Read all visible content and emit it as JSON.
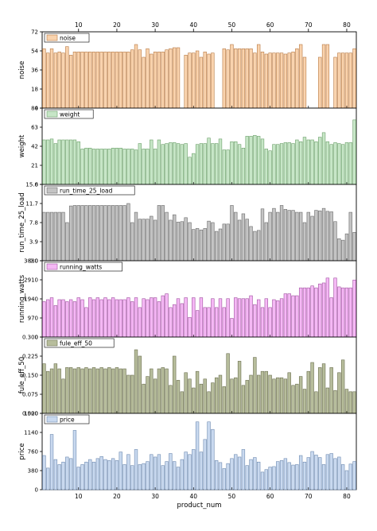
{
  "chart_data": [
    {
      "type": "bar",
      "series_name": "noise",
      "ylabel": "noise",
      "ylim": [
        0,
        72
      ],
      "yticks": [
        "0",
        "18",
        "36",
        "54",
        "72"
      ],
      "color": "#f9d3ae",
      "stroke": "#b77a45",
      "values": [
        56,
        52,
        56,
        52,
        53,
        52,
        58,
        50,
        53,
        53,
        53,
        53,
        53,
        53,
        53,
        53,
        53,
        53,
        53,
        53,
        53,
        53,
        53,
        55,
        60,
        55,
        48,
        56,
        51,
        53,
        53,
        53,
        55,
        56,
        57,
        57,
        0,
        50,
        52,
        52,
        54,
        48,
        53,
        51,
        52,
        0,
        0,
        56,
        55,
        60,
        56,
        56,
        56,
        56,
        56,
        52,
        60,
        53,
        51,
        52,
        52,
        52,
        52,
        51,
        52,
        53,
        56,
        60,
        48,
        0,
        0,
        0,
        48,
        60,
        60,
        0,
        48,
        52,
        52,
        52,
        52,
        56
      ]
    },
    {
      "type": "bar",
      "series_name": "weight",
      "ylabel": "weight",
      "ylim": [
        0,
        84
      ],
      "yticks": [
        "0",
        "21",
        "42",
        "63",
        "84"
      ],
      "color": "#c7e6c7",
      "stroke": "#6a9f68",
      "values": [
        49,
        49,
        50,
        45,
        49,
        49,
        49,
        49,
        49,
        47,
        39,
        40,
        40,
        39,
        39,
        39,
        39,
        39,
        40,
        40,
        40,
        39,
        39,
        39,
        38,
        45,
        39,
        39,
        49,
        39,
        49,
        44,
        45,
        46,
        46,
        45,
        44,
        45,
        30,
        34,
        44,
        45,
        45,
        51,
        45,
        45,
        50,
        38,
        38,
        47,
        47,
        44,
        40,
        53,
        53,
        54,
        53,
        50,
        39,
        37,
        44,
        44,
        45,
        46,
        46,
        45,
        49,
        47,
        52,
        49,
        49,
        47,
        52,
        57,
        47,
        44,
        46,
        45,
        44,
        46,
        46,
        71
      ]
    },
    {
      "type": "bar",
      "series_name": "run_time_25_load",
      "ylabel": "run_time_25_load",
      "ylim": [
        0,
        15.6
      ],
      "yticks": [
        "0.0",
        "3.9",
        "7.8",
        "11.7",
        "15.6"
      ],
      "color": "#c4c4c4",
      "stroke": "#6a6a6a",
      "values": [
        9.9,
        9.9,
        9.9,
        9.9,
        9.9,
        9.9,
        7.8,
        11.2,
        11.3,
        11.3,
        11.3,
        11.3,
        11.3,
        11.3,
        11.3,
        11.3,
        11.3,
        11.3,
        11.3,
        11.3,
        11.3,
        11.3,
        11.7,
        7.8,
        9.9,
        8.5,
        8.5,
        8.5,
        9.1,
        8.3,
        11.3,
        11.3,
        9.9,
        8.3,
        9.4,
        7.9,
        8.0,
        8.8,
        7.8,
        6.4,
        6.6,
        6.3,
        6.6,
        8.1,
        7.8,
        6.0,
        6.5,
        7.5,
        7.5,
        11.3,
        9.9,
        8.3,
        9.6,
        8.5,
        7.0,
        6.0,
        6.2,
        10.6,
        7.8,
        9.9,
        10.7,
        9.9,
        11.3,
        10.5,
        10.3,
        10.3,
        9.9,
        9.9,
        7.8,
        9.9,
        9.1,
        10.3,
        10.2,
        10.7,
        10.1,
        10.0,
        8.0,
        4.5,
        4.2,
        5.5,
        9.9,
        5.8
      ]
    },
    {
      "type": "bar",
      "series_name": "running_watts",
      "ylabel": "running_watts",
      "ylim": [
        0,
        3880
      ],
      "yticks": [
        "0",
        "970",
        "1940",
        "2910",
        "3880"
      ],
      "color": "#f5b8f5",
      "stroke": "#a050a0",
      "values": [
        1800,
        1900,
        2000,
        1600,
        1900,
        1900,
        1800,
        1900,
        1800,
        2000,
        1900,
        1500,
        2000,
        1900,
        2000,
        1900,
        2000,
        1900,
        2000,
        1900,
        1900,
        1900,
        2000,
        1800,
        2000,
        1500,
        1950,
        1900,
        2000,
        2000,
        1800,
        2100,
        2200,
        1500,
        1650,
        1950,
        1700,
        2000,
        1000,
        2000,
        1350,
        2000,
        1500,
        1500,
        1950,
        1500,
        1950,
        1500,
        1950,
        950,
        2000,
        1950,
        1950,
        1950,
        2100,
        1650,
        1900,
        1500,
        1950,
        1500,
        1900,
        1850,
        1950,
        2200,
        2200,
        2100,
        2100,
        2500,
        2500,
        2500,
        2600,
        2500,
        2700,
        2750,
        3000,
        2000,
        3000,
        2550,
        2500,
        2500,
        2500,
        2900
      ]
    },
    {
      "type": "bar",
      "series_name": "fule_eff_50",
      "ylabel": "fule_eff_50",
      "ylim": [
        0.0,
        0.3
      ],
      "yticks": [
        "0.000",
        "0.075",
        "0.150",
        "0.225",
        "0.300"
      ],
      "color": "#b7bd9c",
      "stroke": "#6a6e4e",
      "values": [
        0.195,
        0.165,
        0.175,
        0.195,
        0.175,
        0.135,
        0.18,
        0.18,
        0.175,
        0.18,
        0.175,
        0.18,
        0.175,
        0.18,
        0.175,
        0.18,
        0.175,
        0.18,
        0.175,
        0.18,
        0.175,
        0.175,
        0.15,
        0.15,
        0.25,
        0.225,
        0.115,
        0.145,
        0.175,
        0.135,
        0.175,
        0.18,
        0.175,
        0.11,
        0.225,
        0.13,
        0.085,
        0.16,
        0.135,
        0.1,
        0.165,
        0.115,
        0.135,
        0.085,
        0.12,
        0.14,
        0.15,
        0.105,
        0.235,
        0.135,
        0.14,
        0.205,
        0.11,
        0.13,
        0.15,
        0.22,
        0.15,
        0.165,
        0.165,
        0.15,
        0.135,
        0.14,
        0.14,
        0.135,
        0.16,
        0.11,
        0.115,
        0.145,
        0.095,
        0.165,
        0.2,
        0.085,
        0.18,
        0.195,
        0.1,
        0.18,
        0.09,
        0.16,
        0.21,
        0.095,
        0.085,
        0.085
      ]
    },
    {
      "type": "bar",
      "series_name": "price",
      "ylabel": "price",
      "ylim": [
        0,
        1520
      ],
      "yticks": [
        "0",
        "380",
        "760",
        "1140",
        "1520"
      ],
      "color": "#c9d9ef",
      "stroke": "#6e8ab0",
      "values": [
        680,
        430,
        1100,
        600,
        500,
        550,
        650,
        620,
        1180,
        450,
        500,
        550,
        600,
        550,
        620,
        660,
        600,
        580,
        620,
        580,
        750,
        500,
        700,
        480,
        800,
        500,
        520,
        560,
        700,
        650,
        700,
        480,
        560,
        720,
        560,
        450,
        600,
        750,
        700,
        800,
        1350,
        750,
        1000,
        1350,
        1200,
        580,
        540,
        420,
        520,
        620,
        700,
        650,
        800,
        480,
        600,
        640,
        550,
        350,
        400,
        450,
        460,
        560,
        580,
        620,
        540,
        490,
        500,
        680,
        550,
        640,
        760,
        690,
        640,
        500,
        700,
        720,
        620,
        650,
        500,
        380,
        510,
        560
      ]
    }
  ],
  "shared": {
    "xlabel": "product_num",
    "xlim": [
      0.5,
      82.5
    ],
    "xticks": [
      "10",
      "20",
      "30",
      "40",
      "50",
      "60",
      "70",
      "80"
    ]
  }
}
